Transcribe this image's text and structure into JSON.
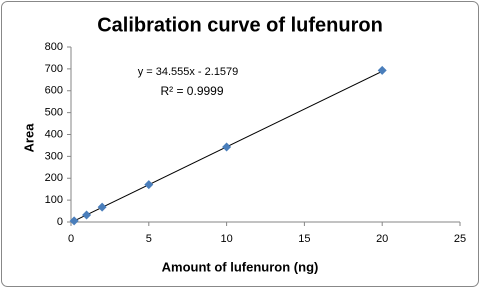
{
  "chart_data": {
    "type": "scatter",
    "title": "Calibration curve of lufenuron",
    "x_label": "Amount of  lufenuron (ng)",
    "y_label": "Area",
    "x": [
      0.2,
      1,
      2,
      5,
      10,
      20
    ],
    "values": [
      5,
      32,
      68,
      171,
      343,
      693
    ],
    "color": "#4a7ebb",
    "xlim": [
      0,
      25
    ],
    "xticks": [
      0,
      5,
      10,
      15,
      20,
      25
    ],
    "ylim": [
      0,
      800
    ],
    "yticks": [
      0,
      100,
      200,
      300,
      400,
      500,
      600,
      700,
      800
    ],
    "grid": false,
    "trendline": {
      "equation": "y = 34.555x - 2.1579",
      "r_squared": "R² = 0.9999",
      "slope": 34.555,
      "intercept": -2.1579
    }
  }
}
